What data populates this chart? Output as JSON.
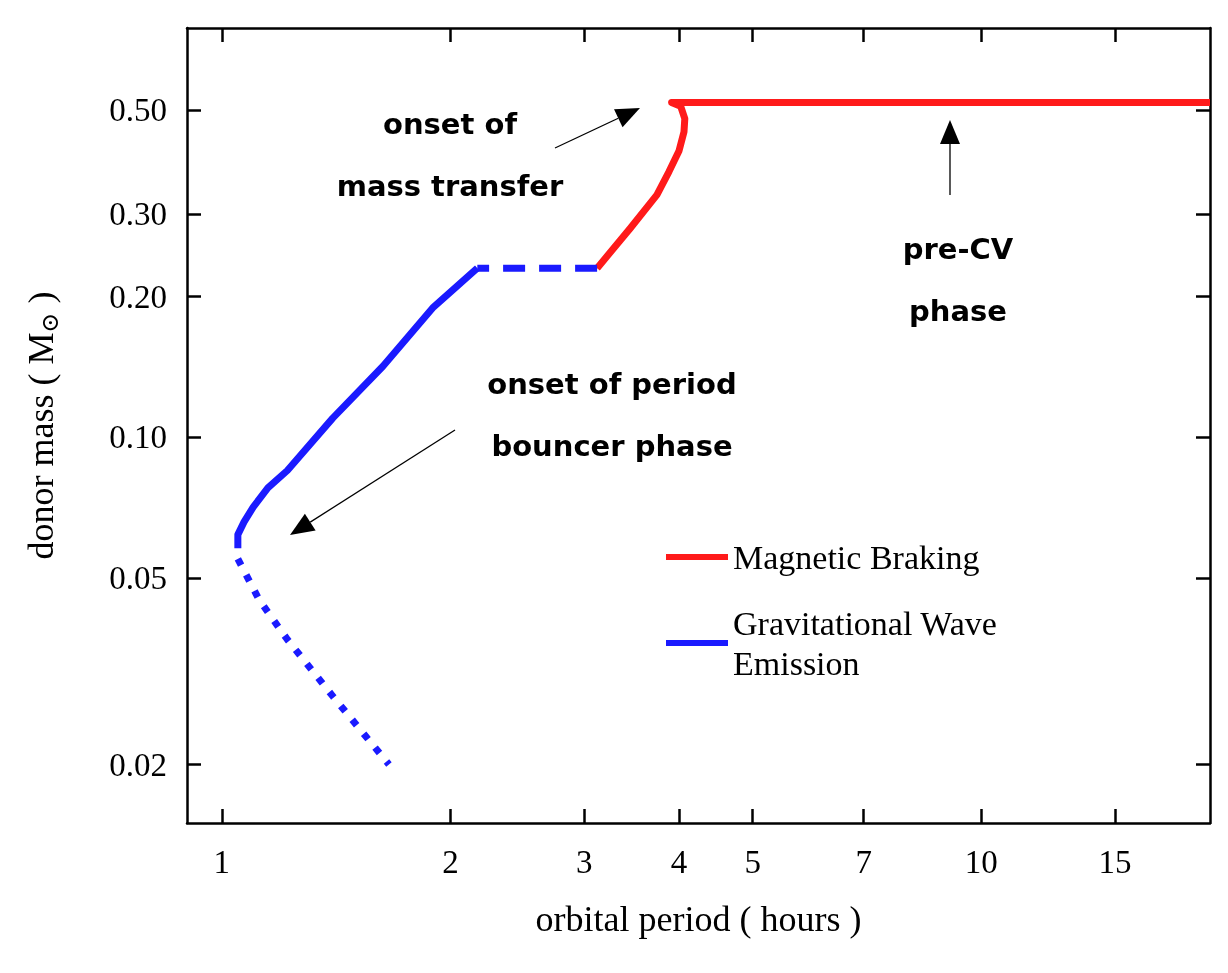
{
  "chart_data": {
    "type": "line",
    "xlabel": "orbital period ( hours )",
    "ylabel": "donor mass ( M$_{⊙}$ )",
    "log": "xy",
    "xlim": [
      0.9,
      20
    ],
    "xticks": [
      1,
      2,
      3,
      4,
      5,
      7,
      10,
      15
    ],
    "ylim": [
      0.015,
      0.75
    ],
    "yticks": [
      {
        "value": 0.02,
        "label": "0.02"
      },
      {
        "value": 0.05,
        "label": "0.05"
      },
      {
        "value": 0.1,
        "label": "0.10"
      },
      {
        "value": 0.2,
        "label": "0.20"
      },
      {
        "value": 0.3,
        "label": "0.30"
      },
      {
        "value": 0.5,
        "label": "0.50"
      }
    ],
    "grid": false,
    "legend": "bottom right",
    "marker": "none",
    "series": [
      {
        "name": "Magnetic Braking",
        "color": "#ff1a1a",
        "line_style": "solid",
        "x": [
          20,
          3.91,
          4.02,
          4.07,
          4.06,
          4.0,
          3.88,
          3.74,
          3.45,
          3.12
        ],
        "values": [
          0.52,
          0.52,
          0.51,
          0.48,
          0.45,
          0.41,
          0.37,
          0.33,
          0.28,
          0.23
        ]
      },
      {
        "name": "Gravitational Wave Emission",
        "color": "#1a1aff",
        "line_style": "solid",
        "x": [
          2.17,
          1.9,
          1.63,
          1.4,
          1.22,
          1.15,
          1.1,
          1.07,
          1.05,
          1.05
        ],
        "values": [
          0.23,
          0.19,
          0.142,
          0.11,
          0.085,
          0.078,
          0.071,
          0.066,
          0.062,
          0.058
        ]
      },
      {
        "color": "#1a1aff",
        "line_style": "dashed",
        "x": [
          3.12,
          2.17
        ],
        "values": [
          0.23,
          0.23
        ]
      },
      {
        "color": "#1a1aff",
        "line_style": "dotted",
        "x": [
          1.05,
          1.12,
          1.22,
          1.4,
          1.66
        ],
        "values": [
          0.055,
          0.045,
          0.037,
          0.028,
          0.02
        ]
      }
    ],
    "annotations": [
      "onset of\nmass transfer",
      "pre-CV\nphase",
      "onset of period\nbouncer phase"
    ]
  }
}
